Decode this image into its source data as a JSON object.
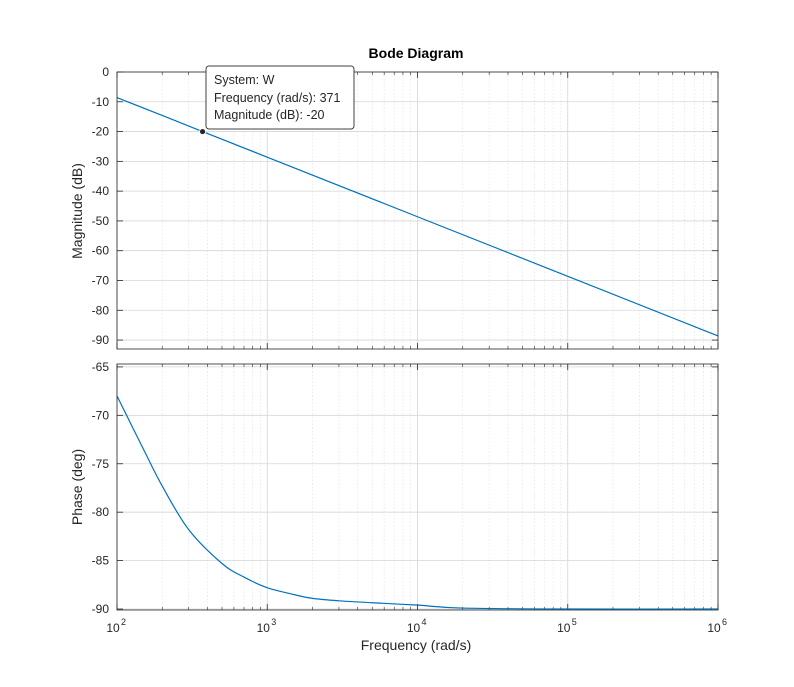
{
  "chart_data": {
    "type": "line",
    "title": "Bode Diagram",
    "xlabel": "Frequency  (rad/s)",
    "x_scale": "log",
    "xlim": [
      100,
      1000000
    ],
    "x_ticks": [
      {
        "base": "10",
        "exp": "2"
      },
      {
        "base": "10",
        "exp": "3"
      },
      {
        "base": "10",
        "exp": "4"
      },
      {
        "base": "10",
        "exp": "5"
      },
      {
        "base": "10",
        "exp": "6"
      }
    ],
    "grid": true,
    "line_color": "#0072bd",
    "panels": [
      {
        "name": "magnitude",
        "ylabel": "Magnitude (dB)",
        "ylim": [
          -93,
          0
        ],
        "y_ticks": [
          "0",
          "-10",
          "-20",
          "-30",
          "-40",
          "-50",
          "-60",
          "-70",
          "-80",
          "-90"
        ],
        "series": [
          {
            "x": [
              100,
              200,
              371,
              1000,
              10000,
              100000,
              1000000
            ],
            "y": [
              -8.6,
              -14.6,
              -20,
              -28.6,
              -48.6,
              -68.6,
              -88.6
            ]
          }
        ]
      },
      {
        "name": "phase",
        "ylabel": "Phase (deg)",
        "ylim": [
          -90.1,
          -64.7
        ],
        "y_ticks": [
          "-65",
          "-70",
          "-75",
          "-80",
          "-85",
          "-90"
        ],
        "series": [
          {
            "x": [
              100,
              150,
              200,
              300,
              500,
              700,
              1000,
              1500,
              2000,
              3000,
              5000,
              10000,
              20000,
              100000,
              1000000
            ],
            "y": [
              -68,
              -73.5,
              -77.3,
              -81.8,
              -85.3,
              -86.7,
              -87.8,
              -88.5,
              -88.9,
              -89.15,
              -89.35,
              -89.6,
              -89.9,
              -90,
              -90
            ]
          }
        ]
      }
    ],
    "datatip": {
      "x": 371,
      "y": -20,
      "lines": [
        "System: W",
        "Frequency (rad/s): 371",
        "Magnitude (dB): -20"
      ]
    }
  }
}
